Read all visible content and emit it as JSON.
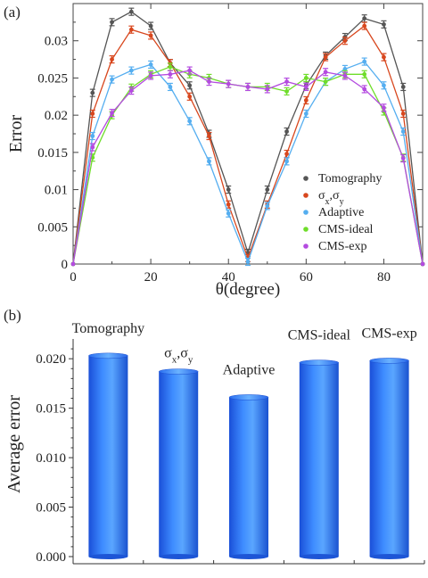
{
  "chart_data": [
    {
      "panel_label": "(a)",
      "type": "line",
      "xlabel": "θ(degree)",
      "ylabel": "Error",
      "xlim": [
        0,
        90
      ],
      "ylim": [
        0,
        0.035
      ],
      "xticks": [
        0,
        20,
        40,
        60,
        80
      ],
      "yticks": [
        0,
        0.005,
        0.01,
        0.015,
        0.02,
        0.025,
        0.03
      ],
      "ytick_labels": [
        "0",
        "0.005",
        "0.01",
        "0.015",
        "0.02",
        "0.025",
        "0.03"
      ],
      "legend_position": "bottom-right",
      "x": [
        0,
        5,
        10,
        15,
        20,
        25,
        30,
        35,
        40,
        45,
        50,
        55,
        60,
        65,
        70,
        75,
        80,
        85,
        90
      ],
      "series": [
        {
          "name": "Tomography",
          "color": "#555555",
          "values": [
            0,
            0.023,
            0.0325,
            0.0339,
            0.032,
            0.027,
            0.024,
            0.0175,
            0.01,
            0.0015,
            0.01,
            0.0178,
            0.024,
            0.028,
            0.0305,
            0.033,
            0.0322,
            0.0238,
            0
          ]
        },
        {
          "name": "σ_x,σ_y",
          "color": "#d8471e",
          "values": [
            0,
            0.0202,
            0.0275,
            0.0315,
            0.0307,
            0.027,
            0.0225,
            0.0172,
            0.008,
            0.0008,
            0.008,
            0.0148,
            0.022,
            0.0278,
            0.03,
            0.032,
            0.0278,
            0.0202,
            0
          ]
        },
        {
          "name": "Adaptive",
          "color": "#55aef0",
          "values": [
            0,
            0.0172,
            0.0248,
            0.026,
            0.0268,
            0.0238,
            0.0192,
            0.0138,
            0.0068,
            0.0003,
            0.0078,
            0.0138,
            0.0202,
            0.0245,
            0.0262,
            0.0272,
            0.024,
            0.0178,
            0
          ]
        },
        {
          "name": "CMS-ideal",
          "color": "#6fdd2a",
          "values": [
            0,
            0.0143,
            0.02,
            0.0237,
            0.0255,
            0.0265,
            0.0255,
            0.025,
            0.0242,
            0.0238,
            0.0238,
            0.0232,
            0.025,
            0.0245,
            0.0255,
            0.0255,
            0.0205,
            0.0143,
            0
          ]
        },
        {
          "name": "CMS-exp",
          "color": "#b44be0",
          "values": [
            0,
            0.0157,
            0.0203,
            0.0233,
            0.0253,
            0.0255,
            0.026,
            0.0245,
            0.0242,
            0.0238,
            0.0235,
            0.0245,
            0.0238,
            0.0258,
            0.0253,
            0.0235,
            0.021,
            0.0142,
            0
          ]
        }
      ]
    },
    {
      "panel_label": "(b)",
      "type": "bar",
      "ylabel": "Average error",
      "ylim": [
        0,
        0.022
      ],
      "yticks": [
        0,
        0.005,
        0.01,
        0.015,
        0.02
      ],
      "ytick_labels": [
        "0.000",
        "0.005",
        "0.010",
        "0.015",
        "0.020"
      ],
      "categories": [
        "Tomography",
        "σx,σy",
        "Adaptive",
        "CMS-ideal",
        "CMS-exp"
      ],
      "values": [
        0.0203,
        0.0187,
        0.0161,
        0.0196,
        0.0198
      ],
      "color": "#2f6fe8"
    }
  ]
}
